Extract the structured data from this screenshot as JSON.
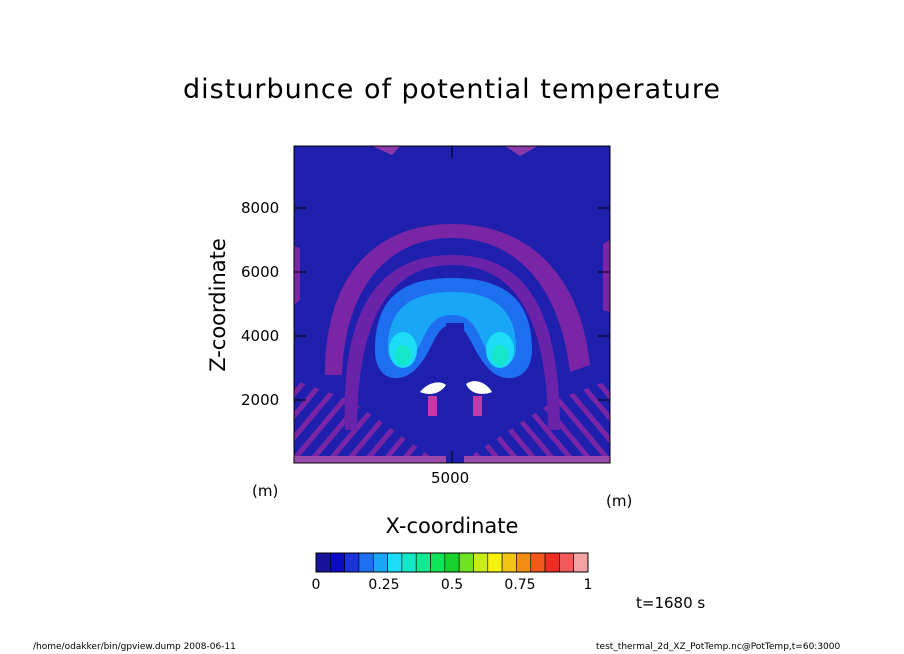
{
  "title": "disturbunce of potential temperature",
  "chart_data": {
    "type": "heatmap",
    "title": "disturbunce of potential temperature",
    "xlabel": "X-coordinate",
    "ylabel": "Z-coordinate",
    "x_unit": "(m)",
    "z_unit": "(m)",
    "xlim": [
      0,
      10000
    ],
    "ylim": [
      0,
      10000
    ],
    "x_ticks": [
      "5000"
    ],
    "y_ticks": [
      "2000",
      "4000",
      "6000",
      "8000"
    ],
    "colorbar": {
      "ticks": [
        "0",
        "0.25",
        "0.5",
        "0.75",
        "1"
      ],
      "colors": [
        "#16149a",
        "#0b0bc4",
        "#1a33d9",
        "#1e6ff0",
        "#1aa6f6",
        "#1cdcf6",
        "#14e7c7",
        "#12e990",
        "#10e45a",
        "#1ad02c",
        "#6ee324",
        "#c7ec18",
        "#f6f10d",
        "#f2c414",
        "#f28e14",
        "#f2591a",
        "#ee2d22",
        "#f05a5a",
        "#f4a2a2"
      ]
    },
    "time": "t=1680 s"
  },
  "footer": {
    "left": "/home/odakker/bin/gpview.dump  2008-06-11",
    "right": "test_thermal_2d_XZ_PotTemp.nc@PotTemp,t=60:3000"
  }
}
